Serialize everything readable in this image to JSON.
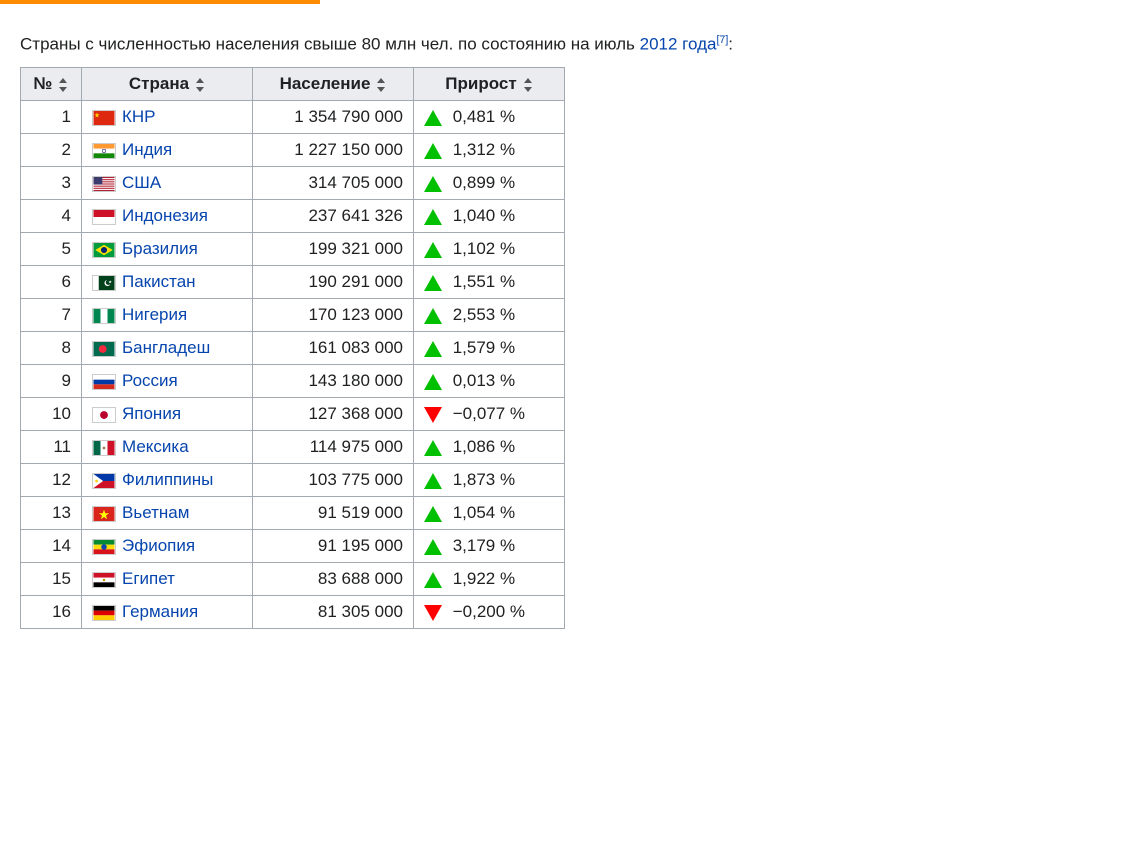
{
  "intro": {
    "prefix": "Страны с численностью населения свыше 80 млн чел. по состоянию на июль ",
    "year_link": "2012 года",
    "cite": "[7]",
    "suffix": ":"
  },
  "table": {
    "columns": [
      "№",
      "Страна",
      "Население",
      "Прирост"
    ],
    "rows": [
      {
        "rank": "1",
        "flag": "cn",
        "country": "КНР",
        "pop": "1 354 790 000",
        "dir": "up",
        "growth": "0,481 %"
      },
      {
        "rank": "2",
        "flag": "in",
        "country": "Индия",
        "pop": "1 227 150 000",
        "dir": "up",
        "growth": "1,312 %"
      },
      {
        "rank": "3",
        "flag": "us",
        "country": "США",
        "pop": "314 705 000",
        "dir": "up",
        "growth": "0,899 %"
      },
      {
        "rank": "4",
        "flag": "id",
        "country": "Индонезия",
        "pop": "237 641 326",
        "dir": "up",
        "growth": "1,040 %"
      },
      {
        "rank": "5",
        "flag": "br",
        "country": "Бразилия",
        "pop": "199 321 000",
        "dir": "up",
        "growth": "1,102 %"
      },
      {
        "rank": "6",
        "flag": "pk",
        "country": "Пакистан",
        "pop": "190 291 000",
        "dir": "up",
        "growth": "1,551 %"
      },
      {
        "rank": "7",
        "flag": "ng",
        "country": "Нигерия",
        "pop": "170 123 000",
        "dir": "up",
        "growth": "2,553 %"
      },
      {
        "rank": "8",
        "flag": "bd",
        "country": "Бангладеш",
        "pop": "161 083 000",
        "dir": "up",
        "growth": "1,579 %"
      },
      {
        "rank": "9",
        "flag": "ru",
        "country": "Россия",
        "pop": "143 180 000",
        "dir": "up",
        "growth": "0,013 %"
      },
      {
        "rank": "10",
        "flag": "jp",
        "country": "Япония",
        "pop": "127 368 000",
        "dir": "down",
        "growth": "−0,077 %"
      },
      {
        "rank": "11",
        "flag": "mx",
        "country": "Мексика",
        "pop": "114 975 000",
        "dir": "up",
        "growth": "1,086 %"
      },
      {
        "rank": "12",
        "flag": "ph",
        "country": "Филиппины",
        "pop": "103 775 000",
        "dir": "up",
        "growth": "1,873 %"
      },
      {
        "rank": "13",
        "flag": "vn",
        "country": "Вьетнам",
        "pop": "91 519 000",
        "dir": "up",
        "growth": "1,054 %"
      },
      {
        "rank": "14",
        "flag": "et",
        "country": "Эфиопия",
        "pop": "91 195 000",
        "dir": "up",
        "growth": "3,179 %"
      },
      {
        "rank": "15",
        "flag": "eg",
        "country": "Египет",
        "pop": "83 688 000",
        "dir": "up",
        "growth": "1,922 %"
      },
      {
        "rank": "16",
        "flag": "de",
        "country": "Германия",
        "pop": "81 305 000",
        "dir": "down",
        "growth": "−0,200 %"
      }
    ]
  },
  "colors": {
    "link": "#0645ad",
    "border": "#a2a9b1",
    "th_bg": "#eaecf0",
    "td_bg": "#ffffff",
    "up": "#00c000",
    "down": "#ff0000",
    "progress": "#ff8c00"
  }
}
